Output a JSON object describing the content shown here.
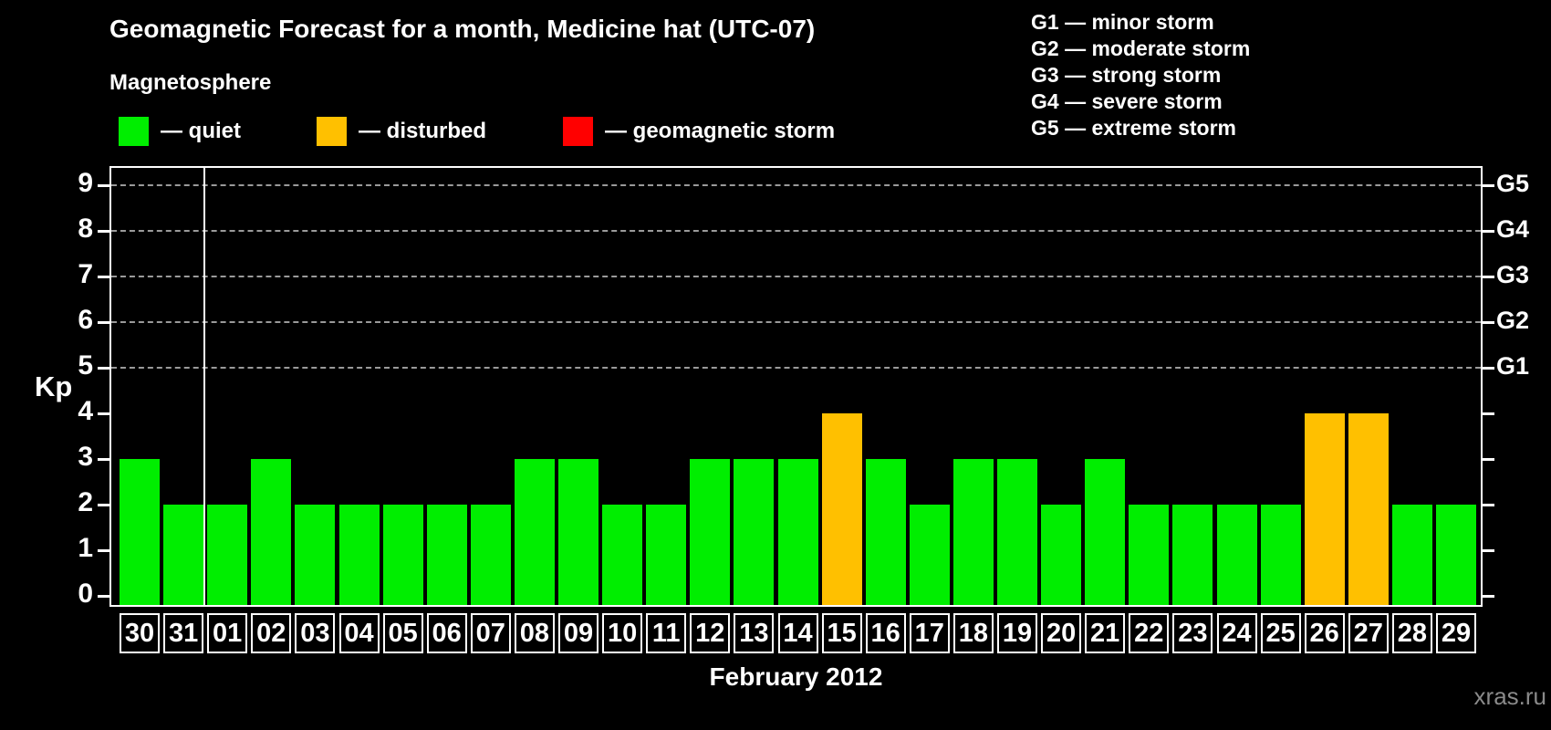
{
  "title": "Geomagnetic Forecast for a month, Medicine hat (UTC-07)",
  "magnetosphere_legend": {
    "heading": "Magnetosphere",
    "items": [
      {
        "name": "quiet",
        "label": "— quiet",
        "color": "#00EE00"
      },
      {
        "name": "disturbed",
        "label": "— disturbed",
        "color": "#FFC000"
      },
      {
        "name": "storm",
        "label": "— geomagnetic storm",
        "color": "#FF0000"
      }
    ]
  },
  "gscale_legend": {
    "items": [
      "G1 — minor storm",
      "G2 — moderate storm",
      "G3 — strong storm",
      "G4 — severe storm",
      "G5 — extreme storm"
    ]
  },
  "watermark": "xras.ru",
  "chart_data": {
    "type": "bar",
    "title": "Geomagnetic Forecast for a month, Medicine hat (UTC-07)",
    "xlabel": "February 2012",
    "ylabel": "Kp",
    "ylim": [
      0,
      9.4
    ],
    "y_ticks": [
      0,
      1,
      2,
      3,
      4,
      5,
      6,
      7,
      8,
      9
    ],
    "right_axis_labels": [
      {
        "label": "G1",
        "kp": 5
      },
      {
        "label": "G2",
        "kp": 6
      },
      {
        "label": "G3",
        "kp": 7
      },
      {
        "label": "G4",
        "kp": 8
      },
      {
        "label": "G5",
        "kp": 9
      }
    ],
    "gridlines_at_kp": [
      5,
      6,
      7,
      8,
      9
    ],
    "grid": "dashed horizontal lines at G1–G5 levels",
    "legend_position": "top-left",
    "categories": [
      "30",
      "31",
      "01",
      "02",
      "03",
      "04",
      "05",
      "06",
      "07",
      "08",
      "09",
      "10",
      "11",
      "12",
      "13",
      "14",
      "15",
      "16",
      "17",
      "18",
      "19",
      "20",
      "21",
      "22",
      "23",
      "24",
      "25",
      "26",
      "27",
      "28",
      "29"
    ],
    "values": [
      3,
      2,
      2,
      3,
      2,
      2,
      2,
      2,
      2,
      3,
      3,
      2,
      2,
      3,
      3,
      3,
      4,
      3,
      2,
      3,
      3,
      2,
      3,
      2,
      2,
      2,
      2,
      4,
      4,
      2,
      2
    ],
    "statuses": [
      "quiet",
      "quiet",
      "quiet",
      "quiet",
      "quiet",
      "quiet",
      "quiet",
      "quiet",
      "quiet",
      "quiet",
      "quiet",
      "quiet",
      "quiet",
      "quiet",
      "quiet",
      "quiet",
      "disturbed",
      "quiet",
      "quiet",
      "quiet",
      "quiet",
      "quiet",
      "quiet",
      "quiet",
      "quiet",
      "quiet",
      "quiet",
      "disturbed",
      "disturbed",
      "quiet",
      "quiet"
    ],
    "status_colors": {
      "quiet": "#00EE00",
      "disturbed": "#FFC000",
      "storm": "#FF0000"
    },
    "month_separator_after_index": 1
  }
}
